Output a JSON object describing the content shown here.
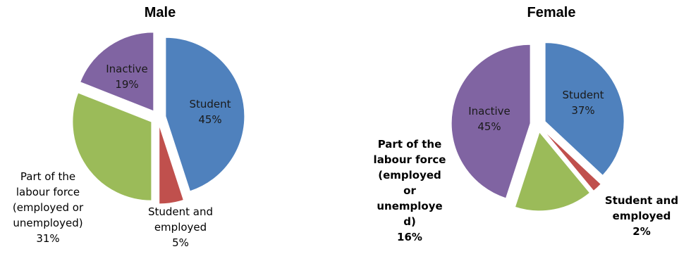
{
  "chart_data": [
    {
      "type": "pie",
      "title": "Male",
      "categories": [
        "Student",
        "Student and employed",
        "Part of the labour force (employed or unemployed)",
        "Inactive"
      ],
      "values": [
        45,
        5,
        31,
        19
      ],
      "labels": [
        {
          "lines": [
            "Student",
            "45%"
          ],
          "inside": true
        },
        {
          "lines": [
            "Student and",
            "employed",
            "5%"
          ],
          "inside": false
        },
        {
          "lines": [
            "Part of the",
            "labour force",
            "(employed or",
            "unemployed)",
            "31%"
          ],
          "inside": false
        },
        {
          "lines": [
            "Inactive",
            "19%"
          ],
          "inside": true
        }
      ],
      "colors": [
        "#4F81BD",
        "#C0504D",
        "#9BBB59",
        "#8064A2"
      ],
      "exploded": "all slices"
    },
    {
      "type": "pie",
      "title": "Female",
      "categories": [
        "Student",
        "Student and employed",
        "Part of the labour force (employed or unemployed)",
        "Inactive"
      ],
      "values": [
        37,
        2,
        16,
        45
      ],
      "labels": [
        {
          "lines": [
            "Student",
            "37%"
          ],
          "inside": true
        },
        {
          "lines": [
            "Student and",
            "employed",
            "2%"
          ],
          "inside": false
        },
        {
          "lines": [
            "Part of the",
            "labour force",
            "(employed",
            "or",
            "unemploye",
            "d)",
            "16%"
          ],
          "inside": false
        },
        {
          "lines": [
            "Inactive",
            "45%"
          ],
          "inside": true
        }
      ],
      "colors": [
        "#4F81BD",
        "#C0504D",
        "#9BBB59",
        "#8064A2"
      ],
      "exploded": "all slices"
    }
  ]
}
